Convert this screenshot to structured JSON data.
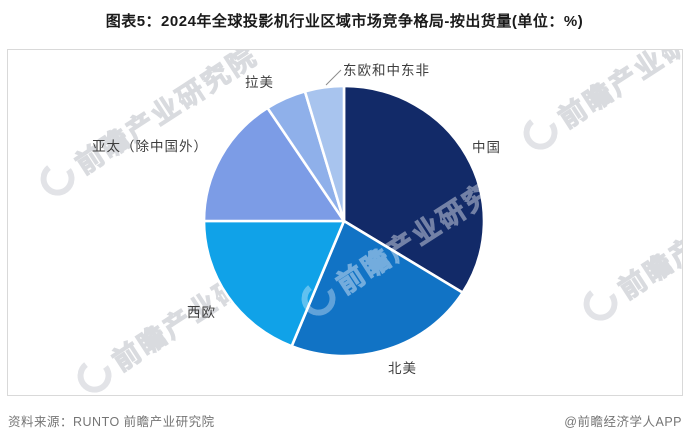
{
  "header": {
    "title": "图表5：2024年全球投影机行业区域市场竞争格局-按出货量(单位：%)"
  },
  "chart_data": {
    "type": "pie",
    "title": "2024年全球投影机行业区域市场竞争格局-按出货量",
    "unit": "%",
    "categories": [
      "中国",
      "北美",
      "西欧",
      "亚太（除中国外）",
      "拉美",
      "东欧和中东非"
    ],
    "values": [
      33.9,
      22.2,
      18.9,
      15.8,
      4.7,
      4.5
    ],
    "colors": [
      "#122a68",
      "#1173c5",
      "#10a2e8",
      "#7c9ce6",
      "#8fb0ea",
      "#a8c4ee"
    ],
    "start_angle_deg": 0,
    "direction": "clockwise",
    "legend_position": "none",
    "labels_on_chart": true
  },
  "watermark": {
    "text": "前瞻产业研究院"
  },
  "footer": {
    "source": "资料来源：RUNTO 前瞻产业研究院",
    "credit": "@前瞻经济学人APP"
  }
}
